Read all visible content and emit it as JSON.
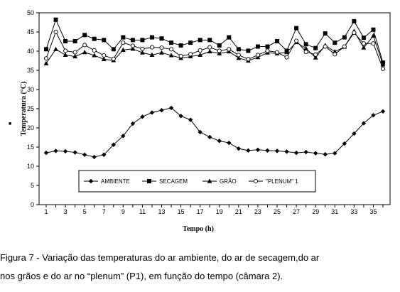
{
  "caption": {
    "line1": "Figura 7 - Variação das temperaturas do ar ambiente, do ar de secagem,do ar",
    "line2": "nos grãos e do ar no “plenum” (P1), em função do tempo (câmara 2)."
  },
  "chart_data": {
    "type": "line",
    "xlabel": "Tempo (h)",
    "ylabel": "Temperatura (°C)",
    "xlim": [
      1,
      36
    ],
    "ylim": [
      0,
      50
    ],
    "y_ticks": [
      0,
      5,
      10,
      15,
      20,
      25,
      30,
      35,
      40,
      45,
      50
    ],
    "x_ticks": [
      1,
      3,
      5,
      7,
      9,
      11,
      13,
      15,
      17,
      19,
      21,
      23,
      25,
      27,
      29,
      31,
      33,
      35
    ],
    "grid": false,
    "legend_position": "bottom-center",
    "x": [
      1,
      2,
      3,
      4,
      5,
      6,
      7,
      8,
      9,
      10,
      11,
      12,
      13,
      14,
      15,
      16,
      17,
      18,
      19,
      20,
      21,
      22,
      23,
      24,
      25,
      26,
      27,
      28,
      29,
      30,
      31,
      32,
      33,
      34,
      35,
      36
    ],
    "series": [
      {
        "name": "AMBIENTE",
        "marker": "diamond",
        "values": [
          13.5,
          14.0,
          13.9,
          13.6,
          13.0,
          12.4,
          13.0,
          15.6,
          17.9,
          21.1,
          22.9,
          24.0,
          24.6,
          25.2,
          23.1,
          22.1,
          18.9,
          17.6,
          16.6,
          16.1,
          14.6,
          14.1,
          14.3,
          14.1,
          14.0,
          13.8,
          13.5,
          13.7,
          13.4,
          13.1,
          13.4,
          15.9,
          18.5,
          21.2,
          23.3,
          24.3
        ]
      },
      {
        "name": "SECAGEM",
        "marker": "square",
        "values": [
          40.5,
          48.2,
          42.6,
          42.6,
          44.2,
          43.2,
          42.9,
          40.5,
          43.6,
          42.9,
          42.9,
          43.6,
          43.3,
          42.2,
          41.5,
          42.2,
          42.9,
          42.9,
          41.5,
          43.6,
          40.5,
          40.1,
          41.2,
          41.2,
          42.6,
          40.1,
          46.0,
          41.8,
          40.8,
          44.6,
          42.2,
          43.6,
          47.8,
          43.5,
          45.6,
          37.0
        ]
      },
      {
        "name": "GRÃO",
        "marker": "triangle",
        "values": [
          36.8,
          40.5,
          39.0,
          38.6,
          39.7,
          38.9,
          37.9,
          37.6,
          40.3,
          40.6,
          39.6,
          39.0,
          39.6,
          38.9,
          38.2,
          38.6,
          39.0,
          39.9,
          39.4,
          39.9,
          38.2,
          37.5,
          38.4,
          39.6,
          39.4,
          39.7,
          42.3,
          40.7,
          38.3,
          41.5,
          39.9,
          41.1,
          45.2,
          40.9,
          44.0,
          36.5
        ]
      },
      {
        "name": "\"PLENUM\" 1",
        "marker": "circle",
        "values": [
          38.1,
          45.0,
          40.1,
          39.7,
          41.6,
          40.2,
          38.9,
          38.0,
          42.2,
          41.4,
          40.6,
          41.0,
          40.9,
          40.5,
          38.7,
          39.2,
          40.2,
          41.0,
          40.1,
          40.5,
          39.0,
          37.9,
          39.0,
          40.1,
          39.7,
          38.4,
          42.7,
          39.8,
          39.1,
          41.2,
          39.2,
          41.2,
          44.8,
          42.0,
          42.0,
          35.4
        ]
      }
    ],
    "side_marker": "■"
  }
}
